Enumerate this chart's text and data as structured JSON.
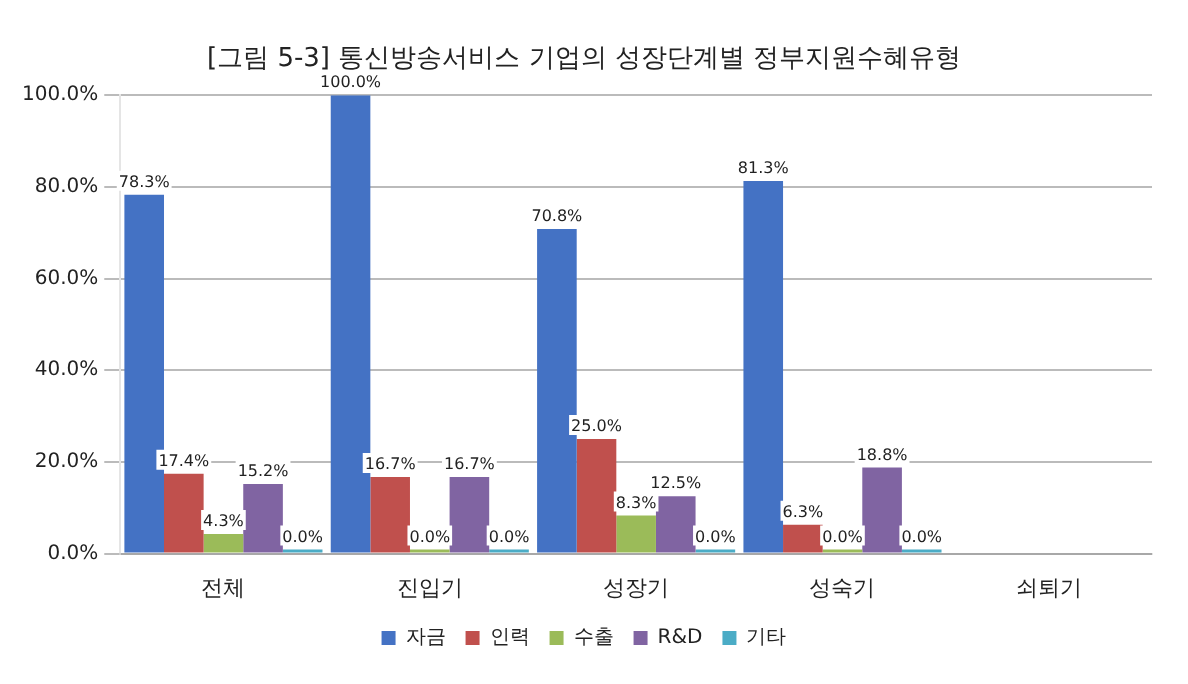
{
  "chart_data": {
    "type": "bar",
    "title": "[그림 5-3] 통신방송서비스 기업의 성장단계별 정부지원수혜유형",
    "categories": [
      "전체",
      "진입기",
      "성장기",
      "성숙기",
      "쇠퇴기"
    ],
    "series": [
      {
        "name": "자금",
        "color": "#4472c4",
        "values": [
          78.3,
          100,
          70.8,
          81.3,
          null
        ],
        "value_labels": [
          "78.3%",
          "100.0%",
          "70.8%",
          "81.3%",
          null
        ]
      },
      {
        "name": "인력",
        "color": "#c0504d",
        "values": [
          17.4,
          16.7,
          25.0,
          6.3,
          null
        ],
        "value_labels": [
          "17.4%",
          "16.7%",
          "25.0%",
          "6.3%",
          null
        ]
      },
      {
        "name": "수출",
        "color": "#9bbb59",
        "values": [
          4.3,
          0.0,
          8.3,
          0.0,
          null
        ],
        "value_labels": [
          "4.3%",
          "0.0%",
          "8.3%",
          "0.0%",
          null
        ]
      },
      {
        "name": "R&D",
        "color": "#8064a2",
        "values": [
          15.2,
          16.7,
          12.5,
          18.8,
          null
        ],
        "value_labels": [
          "15.2%",
          "16.7%",
          "12.5%",
          "18.8%",
          null
        ]
      },
      {
        "name": "기타",
        "color": "#4bacc6",
        "values": [
          0.0,
          0.0,
          0.0,
          0.0,
          null
        ],
        "value_labels": [
          "0.0%",
          "0.0%",
          "0.0%",
          "0.0%",
          null
        ]
      }
    ],
    "ylim": [
      0,
      100
    ],
    "yticks": [
      {
        "value": 0,
        "label": "0.0%"
      },
      {
        "value": 20,
        "label": "20.0%"
      },
      {
        "value": 40,
        "label": "40.0%"
      },
      {
        "value": 60,
        "label": "60.0%"
      },
      {
        "value": 80,
        "label": "80.0%"
      },
      {
        "value": 100,
        "label": "100.0%"
      }
    ],
    "grid": "y",
    "legend": "bottom"
  }
}
